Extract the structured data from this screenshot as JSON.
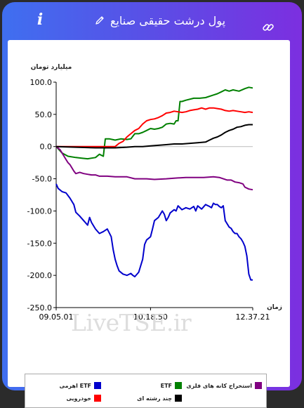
{
  "header": {
    "title": "پول درشت حقیقی صنایع",
    "info_icon": "i",
    "icons": [
      "info-icon",
      "pencil-icon",
      "link-icon"
    ]
  },
  "watermark": "LiveTSE.ir",
  "chart_data": {
    "type": "line",
    "ylabel": "میلیارد تومان",
    "xlabel": "زمان",
    "ylim": [
      -250,
      100
    ],
    "yticks": [
      100,
      50,
      0,
      -50,
      -100,
      -150,
      -200,
      -250
    ],
    "ytick_labels": [
      "100.0",
      "50.0",
      "0.0",
      "-50.0",
      "-100.0",
      "-150.0",
      "-200.0",
      "-250.0"
    ],
    "xlim": [
      0,
      100
    ],
    "xticks": [
      0,
      48,
      100
    ],
    "xtick_labels": [
      "09.05.01",
      "10.18.50",
      "12.37.21"
    ],
    "grid": false,
    "zero_line": true,
    "legend_position": "bottom",
    "series": [
      {
        "name": "ETF اهرمی",
        "color": "#0000cc",
        "x": [
          0,
          1,
          3,
          5,
          7,
          9,
          10,
          12,
          14,
          16,
          17,
          18,
          20,
          22,
          24,
          26,
          28,
          29,
          30,
          31,
          32,
          34,
          36,
          38,
          39,
          40,
          42,
          44,
          45,
          46,
          48,
          49,
          50,
          52,
          54,
          55,
          56,
          57,
          58,
          60,
          61,
          62,
          64,
          66,
          68,
          70,
          71,
          72,
          74,
          76,
          78,
          79,
          80,
          81,
          82,
          83,
          84,
          85,
          86,
          88,
          89,
          90,
          91,
          92,
          93,
          94,
          95,
          96,
          97,
          98,
          99,
          100
        ],
        "values": [
          -58,
          -65,
          -70,
          -72,
          -80,
          -90,
          -102,
          -108,
          -115,
          -122,
          -110,
          -118,
          -128,
          -135,
          -132,
          -128,
          -140,
          -160,
          -175,
          -185,
          -193,
          -198,
          -200,
          -197,
          -200,
          -202,
          -195,
          -175,
          -152,
          -145,
          -140,
          -128,
          -115,
          -110,
          -100,
          -105,
          -115,
          -110,
          -103,
          -98,
          -100,
          -92,
          -98,
          -95,
          -97,
          -93,
          -100,
          -92,
          -97,
          -90,
          -93,
          -95,
          -88,
          -90,
          -90,
          -93,
          -95,
          -92,
          -115,
          -125,
          -127,
          -132,
          -135,
          -135,
          -140,
          -143,
          -148,
          -155,
          -170,
          -198,
          -207,
          -207
        ]
      },
      {
        "name": "ETF",
        "color": "#008000",
        "x": [
          0,
          3,
          6,
          10,
          13,
          16,
          20,
          22,
          24,
          25,
          27,
          30,
          33,
          36,
          38,
          40,
          42,
          44,
          46,
          48,
          50,
          52,
          54,
          56,
          58,
          60,
          61,
          62,
          63,
          64,
          66,
          70,
          73,
          76,
          80,
          82,
          84,
          86,
          88,
          90,
          93,
          96,
          98,
          100
        ],
        "values": [
          0,
          -10,
          -15,
          -17,
          -18,
          -19,
          -17,
          -12,
          -15,
          12,
          12,
          10,
          12,
          11,
          12,
          20,
          20,
          22,
          25,
          28,
          27,
          28,
          30,
          35,
          36,
          35,
          40,
          40,
          70,
          70,
          72,
          75,
          75,
          76,
          80,
          82,
          85,
          88,
          86,
          88,
          86,
          90,
          92,
          91
        ]
      },
      {
        "name": "استخراج کانه های فلزی",
        "color": "#800080",
        "x": [
          0,
          2,
          4,
          5,
          6,
          7,
          8,
          9,
          10,
          12,
          14,
          16,
          18,
          20,
          22,
          26,
          30,
          36,
          40,
          46,
          50,
          56,
          60,
          66,
          70,
          75,
          80,
          83,
          85,
          87,
          89,
          91,
          93,
          95,
          96,
          98,
          100
        ],
        "values": [
          0,
          -5,
          -15,
          -20,
          -25,
          -28,
          -33,
          -38,
          -42,
          -40,
          -42,
          -43,
          -44,
          -44,
          -46,
          -46,
          -47,
          -47,
          -50,
          -50,
          -51,
          -50,
          -49,
          -48,
          -48,
          -48,
          -47,
          -48,
          -50,
          -52,
          -52,
          -55,
          -56,
          -58,
          -63,
          -66,
          -67
        ]
      },
      {
        "name": "خودرویی",
        "color": "#ff0000",
        "x": [
          0,
          10,
          20,
          30,
          32,
          34,
          36,
          38,
          40,
          42,
          44,
          46,
          48,
          50,
          52,
          54,
          56,
          58,
          60,
          62,
          64,
          66,
          68,
          70,
          72,
          74,
          76,
          78,
          80,
          82,
          84,
          86,
          88,
          90,
          92,
          94,
          96,
          98,
          100
        ],
        "values": [
          0,
          0,
          0,
          0,
          5,
          8,
          15,
          20,
          25,
          28,
          35,
          40,
          42,
          43,
          45,
          48,
          52,
          53,
          55,
          54,
          53,
          54,
          56,
          57,
          58,
          60,
          58,
          60,
          60,
          59,
          58,
          56,
          55,
          56,
          55,
          54,
          53,
          54,
          53
        ]
      },
      {
        "name": "چند رشته ای",
        "color": "#000000",
        "x": [
          0,
          10,
          20,
          30,
          36,
          40,
          44,
          48,
          52,
          56,
          60,
          64,
          68,
          72,
          76,
          78,
          80,
          82,
          84,
          86,
          88,
          90,
          92,
          94,
          96,
          98,
          100
        ],
        "values": [
          0,
          -1,
          -2,
          -2,
          -1,
          0,
          0,
          1,
          2,
          3,
          4,
          4,
          5,
          6,
          7,
          10,
          13,
          15,
          18,
          22,
          25,
          27,
          30,
          31,
          33,
          34,
          34
        ]
      }
    ]
  }
}
